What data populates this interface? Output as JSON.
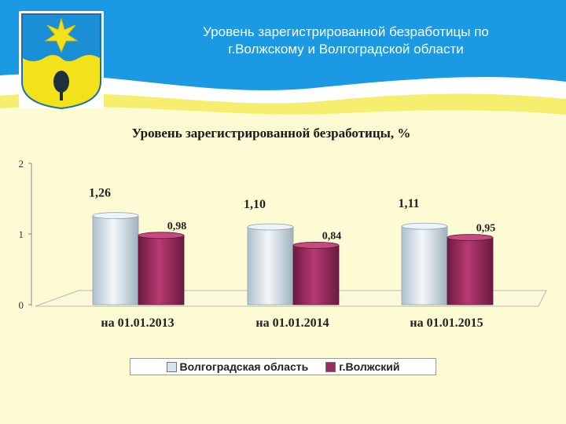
{
  "header": {
    "title_lines": [
      "Уровень зарегистрированной безработицы по",
      "г.Волжскому и Волгоградской области"
    ],
    "emblem_icon": "city-coat-of-arms-icon"
  },
  "colors": {
    "sky": "#1b9ae3",
    "background": "#fdfbd3",
    "series_volgograd": "#d8e4ec",
    "series_volzhsky": "#9b2a5e"
  },
  "chart_data": {
    "type": "bar",
    "title": "Уровень зарегистрированной безработицы, %",
    "categories": [
      "на 01.01.2013",
      "на 01.01.2014",
      "на 01.01.2015"
    ],
    "series": [
      {
        "name": "Волгоградская область",
        "values": [
          1.26,
          1.1,
          1.11
        ],
        "labels": [
          "1,26",
          "1,10",
          "1,11"
        ]
      },
      {
        "name": "г.Волжский",
        "values": [
          0.98,
          0.84,
          0.95
        ],
        "labels": [
          "0,98",
          "0,84",
          "0,95"
        ]
      }
    ],
    "ylim": [
      0,
      2
    ],
    "yticks": [
      "0",
      "1",
      "2"
    ],
    "legend": "bottom",
    "grid": false
  }
}
